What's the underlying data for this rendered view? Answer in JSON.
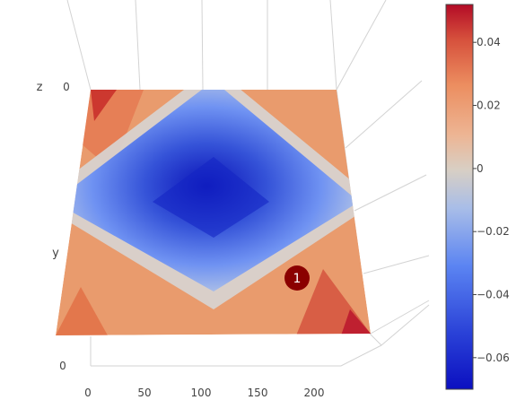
{
  "chart_data": {
    "type": "heatmap",
    "plot_type": "3d-surface",
    "colorscale": "RdBu reversed (coolwarm)",
    "axes": {
      "x": {
        "title": "",
        "ticks": [
          "0",
          "50",
          "100",
          "150",
          "200"
        ],
        "range": [
          0,
          220
        ]
      },
      "y": {
        "title": "y",
        "ticks": [
          "0"
        ]
      },
      "z": {
        "title": "z",
        "ticks": [
          "0"
        ]
      }
    },
    "surface": {
      "description_values": {
        "min_center": -0.07,
        "corner_top_left": 0.05,
        "corner_bottom_right": 0.05,
        "corner_top_right": 0.02,
        "corner_bottom_left": 0.04
      }
    },
    "colorbar": {
      "min": -0.07,
      "max": 0.052,
      "tick_values": [
        0.04,
        0.02,
        0,
        -0.02,
        -0.04,
        -0.06
      ],
      "tick_labels": [
        "0.04",
        "0.02",
        "0",
        "−0.02",
        "−0.04",
        "−0.06"
      ]
    },
    "annotations": [
      {
        "label": "1",
        "color": "#8b0000"
      }
    ]
  }
}
